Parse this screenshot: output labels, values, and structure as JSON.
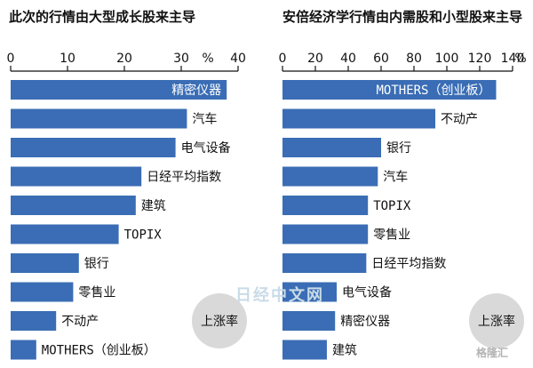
{
  "colors": {
    "bar": "#3a6db5",
    "axis": "#111111",
    "badge_bg": "#d9d9d9"
  },
  "badge_label": "上涨率",
  "watermarks": {
    "center": "日经中文网",
    "corner": "格隆汇"
  },
  "chart_data": [
    {
      "type": "bar",
      "orientation": "horizontal",
      "title": "此次的行情由大型成长股来主导",
      "unit": "%",
      "xlim": [
        0,
        40
      ],
      "ticks": [
        0,
        10,
        20,
        30,
        40
      ],
      "categories": [
        "精密仪器",
        "汽车",
        "电气设备",
        "日经平均指数",
        "建筑",
        "TOPIX",
        "银行",
        "零售业",
        "不动产",
        "MOTHERS（创业板）"
      ],
      "values": [
        38,
        31,
        29,
        23,
        22,
        19,
        12,
        11,
        8,
        4.5
      ]
    },
    {
      "type": "bar",
      "orientation": "horizontal",
      "title": "安倍经济学行情由内需股和小型股来主导",
      "unit": "%",
      "xlim": [
        0,
        140
      ],
      "ticks": [
        0,
        20,
        40,
        60,
        80,
        100,
        120,
        140
      ],
      "categories": [
        "MOTHERS（创业板）",
        "不动产",
        "银行",
        "汽车",
        "TOPIX",
        "零售业",
        "日经平均指数",
        "电气设备",
        "精密仪器",
        "建筑"
      ],
      "values": [
        130,
        93,
        60,
        58,
        52,
        52,
        51,
        33,
        32,
        27
      ]
    }
  ]
}
